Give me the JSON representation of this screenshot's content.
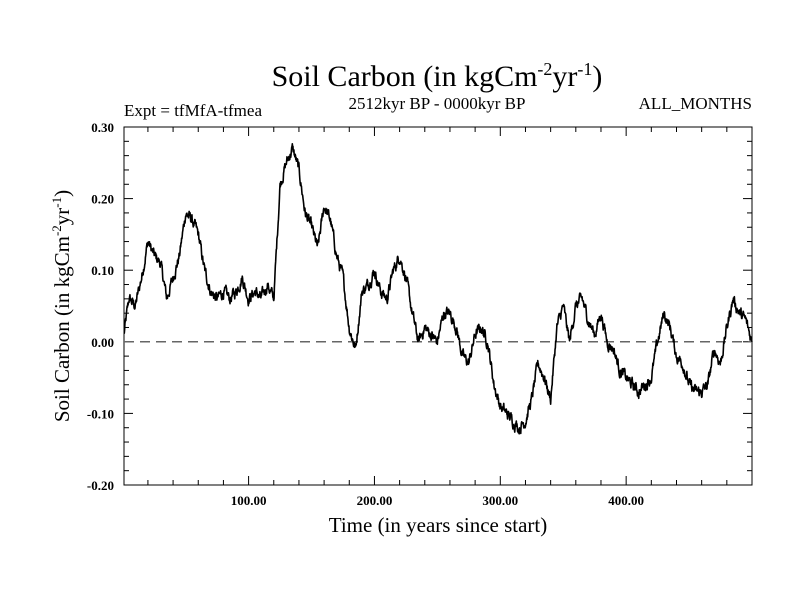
{
  "chart_data": {
    "type": "line",
    "title_main": "Soil Carbon (in kgCm",
    "title_sup1": "-2",
    "title_mid": "yr",
    "title_sup2": "-1",
    "title_end": ")",
    "expt": "Expt = tfMfA-tfmea",
    "period": "2512kyr BP - 0000kyr BP",
    "months": "ALL_MONTHS",
    "xlabel": "Time (in years since start)",
    "ylabel_main": "Soil Carbon (in kgCm",
    "ylabel_sup1": "-2",
    "ylabel_mid": "yr",
    "ylabel_sup2": "-1",
    "ylabel_end": ")",
    "xlim": [
      1,
      500
    ],
    "ylim": [
      -0.2,
      0.3
    ],
    "xticks": [
      100,
      200,
      300,
      400
    ],
    "xtick_labels": [
      "100.00",
      "200.00",
      "300.00",
      "400.00"
    ],
    "yticks": [
      0.3,
      0.2,
      0.1,
      0.0,
      -0.1,
      -0.2
    ],
    "ytick_labels": [
      "0.30",
      "0.20",
      "0.10",
      "0.00",
      "-0.10",
      "-0.20"
    ],
    "reference_line": 0.0,
    "x": [
      1,
      5,
      10,
      15,
      20,
      25,
      30,
      35,
      40,
      45,
      50,
      55,
      60,
      65,
      70,
      75,
      80,
      85,
      90,
      95,
      100,
      105,
      110,
      115,
      120,
      125,
      130,
      135,
      140,
      145,
      150,
      155,
      160,
      165,
      170,
      175,
      180,
      185,
      190,
      195,
      200,
      205,
      210,
      215,
      220,
      225,
      230,
      235,
      240,
      245,
      250,
      255,
      260,
      265,
      270,
      275,
      280,
      285,
      290,
      295,
      300,
      305,
      310,
      315,
      320,
      325,
      330,
      335,
      340,
      345,
      350,
      355,
      360,
      365,
      370,
      375,
      380,
      385,
      390,
      395,
      400,
      405,
      410,
      415,
      420,
      425,
      430,
      435,
      440,
      445,
      450,
      455,
      460,
      465,
      470,
      475,
      480,
      485,
      490,
      495,
      500
    ],
    "y": [
      0.01,
      0.06,
      0.05,
      0.09,
      0.14,
      0.12,
      0.11,
      0.06,
      0.09,
      0.12,
      0.18,
      0.17,
      0.15,
      0.1,
      0.07,
      0.06,
      0.07,
      0.06,
      0.07,
      0.09,
      0.06,
      0.07,
      0.06,
      0.08,
      0.06,
      0.22,
      0.25,
      0.27,
      0.24,
      0.18,
      0.16,
      0.13,
      0.19,
      0.17,
      0.12,
      0.09,
      0.02,
      -0.01,
      0.07,
      0.08,
      0.1,
      0.07,
      0.06,
      0.1,
      0.12,
      0.09,
      0.04,
      0.0,
      0.02,
      0.01,
      0.0,
      0.04,
      0.04,
      0.02,
      -0.02,
      -0.03,
      0.01,
      0.02,
      0.0,
      -0.06,
      -0.09,
      -0.1,
      -0.11,
      -0.12,
      -0.11,
      -0.08,
      -0.03,
      -0.05,
      -0.08,
      0.02,
      0.05,
      0.0,
      0.05,
      0.06,
      0.03,
      0.01,
      0.04,
      0.0,
      -0.01,
      -0.04,
      -0.05,
      -0.06,
      -0.07,
      -0.06,
      -0.05,
      0.0,
      0.04,
      0.02,
      -0.02,
      -0.03,
      -0.06,
      -0.07,
      -0.07,
      -0.06,
      -0.01,
      -0.03,
      0.02,
      0.06,
      0.04,
      0.03,
      0.0
    ]
  }
}
